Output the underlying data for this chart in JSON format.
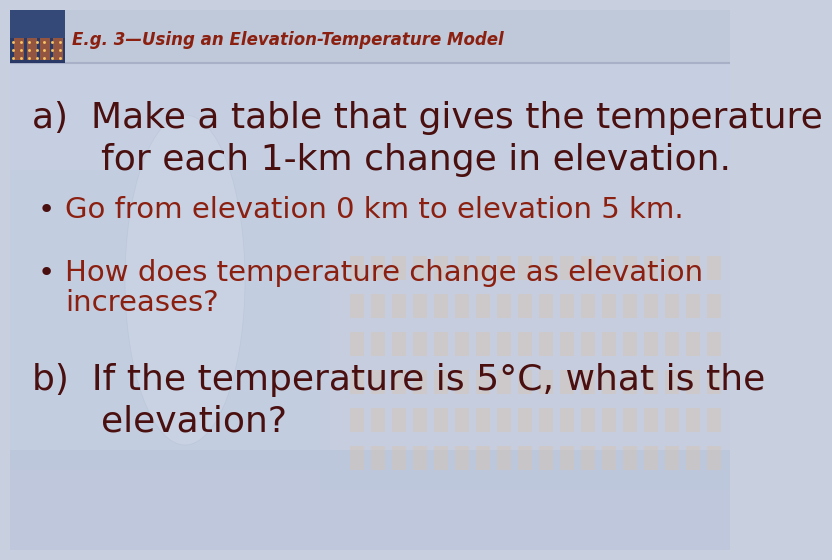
{
  "title": "E.g. 3—Using an Elevation-Temperature Model",
  "title_color": "#8B2010",
  "title_style": "italic",
  "title_fontsize": 12,
  "bg_top_color": "#c8d0e0",
  "bg_mid_color": "#bcc8dc",
  "bg_bot_color": "#b8c0d8",
  "header_bg": "#c0c8d8",
  "part_a_line1": "a)  Make a table that gives the temperature",
  "part_a_line2": "      for each 1-km change in elevation.",
  "bullet1_dot": "•",
  "bullet1_text": "Go from elevation 0 km to elevation 5 km.",
  "bullet2_dot": "•",
  "bullet2_text": "How does temperature change as elevation",
  "bullet2b_text": "increases?",
  "part_b_line1": "b)  If the temperature is 5°C, what is the",
  "part_b_line2": "      elevation?",
  "text_color_dark": "#4A1010",
  "text_color_bullet": "#8B2010",
  "main_fontsize": 26,
  "bullet_fontsize": 21,
  "thumb_colors": [
    "#1a2a5a",
    "#2a3a7a",
    "#c05020",
    "#e08030",
    "#304070"
  ],
  "header_line_color": "#a8b0c8"
}
